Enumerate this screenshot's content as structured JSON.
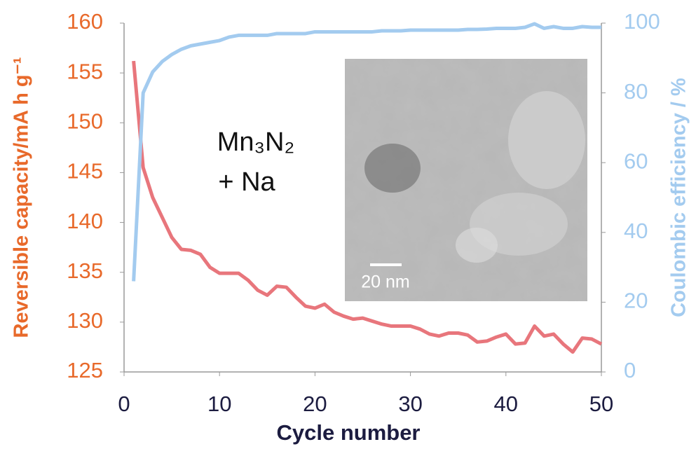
{
  "chart_data": {
    "type": "line",
    "annotation": [
      "Mn₃N₂",
      "+ Na"
    ],
    "inset_label": "20 nm",
    "x_label": "Cycle number",
    "y_label": "Reversible capacity/mA h g⁻¹",
    "y2_label": "Coulombic efficiency / %",
    "x": [
      1,
      2,
      3,
      4,
      5,
      6,
      7,
      8,
      9,
      10,
      11,
      12,
      13,
      14,
      15,
      16,
      17,
      18,
      19,
      20,
      21,
      22,
      23,
      24,
      25,
      26,
      27,
      28,
      29,
      30,
      31,
      32,
      33,
      34,
      35,
      36,
      37,
      38,
      39,
      40,
      41,
      42,
      43,
      44,
      45,
      46,
      47,
      48,
      49,
      50
    ],
    "xlim": [
      0,
      50
    ],
    "xticks": [
      0,
      10,
      20,
      30,
      40,
      50
    ],
    "ylim": [
      125,
      160
    ],
    "yticks": [
      125,
      130,
      135,
      140,
      145,
      150,
      155,
      160
    ],
    "y2lim": [
      0,
      100
    ],
    "y2ticks": [
      0,
      20,
      40,
      60,
      80,
      100
    ],
    "series": [
      {
        "name": "Reversible capacity",
        "color": "#e8767c",
        "values": [
          156.2,
          145.5,
          142.5,
          140.5,
          138.5,
          137.3,
          137.2,
          136.8,
          135.5,
          134.9,
          134.9,
          134.9,
          134.2,
          133.2,
          132.7,
          133.6,
          133.5,
          132.5,
          131.6,
          131.4,
          131.8,
          131.0,
          130.6,
          130.3,
          130.4,
          130.1,
          129.8,
          129.6,
          129.6,
          129.6,
          129.3,
          128.8,
          128.6,
          128.9,
          128.9,
          128.7,
          128.0,
          128.1,
          128.5,
          128.8,
          127.8,
          127.9,
          129.6,
          128.6,
          128.8,
          127.8,
          127.0,
          128.4,
          128.3,
          127.8
        ]
      },
      {
        "name": "Coulombic efficiency",
        "color": "#a3cbef",
        "axis": "y2",
        "values": [
          26,
          80,
          86,
          89,
          91,
          92.5,
          93.5,
          94,
          94.5,
          95,
          96,
          96.5,
          96.5,
          96.5,
          96.5,
          97,
          97,
          97,
          97,
          97.5,
          97.5,
          97.5,
          97.5,
          97.5,
          97.5,
          97.5,
          97.8,
          97.8,
          97.8,
          98,
          98,
          98,
          98,
          98,
          98,
          98.2,
          98.2,
          98.3,
          98.5,
          98.5,
          98.5,
          98.8,
          99.8,
          98.5,
          99,
          98.5,
          98.5,
          99,
          98.8,
          98.8
        ]
      }
    ]
  }
}
